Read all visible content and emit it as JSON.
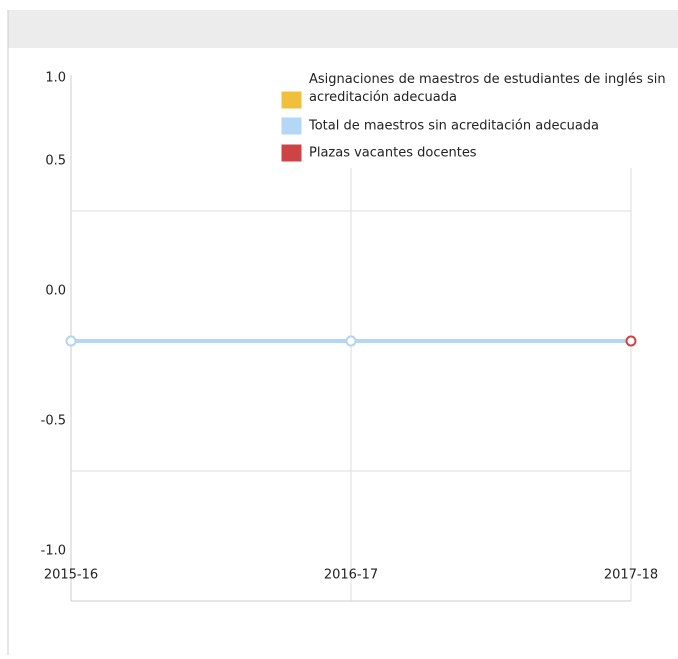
{
  "chart_data": {
    "type": "line",
    "categories": [
      "2015-16",
      "2016-17",
      "2017-18"
    ],
    "series": [
      {
        "name": "Asignaciones de maestros de estudiantes de inglés sin acreditación adecuada",
        "color": "#f0c03c",
        "values": [
          0,
          0,
          0
        ]
      },
      {
        "name": "Total de maestros sin acreditación adecuada",
        "color": "#b3d7f5",
        "values": [
          0,
          0,
          0
        ]
      },
      {
        "name": "Plazas vacantes docentes",
        "color": "#cc4444",
        "values": [
          null,
          null,
          0
        ]
      }
    ],
    "ylim": [
      -1,
      1
    ],
    "yticks": [
      {
        "value": 1,
        "label": "1.0"
      },
      {
        "value": 0.5,
        "label": "0.5"
      },
      {
        "value": 0,
        "label": "0.0"
      },
      {
        "value": -0.5,
        "label": "-0.5"
      },
      {
        "value": -1,
        "label": "-1.0"
      }
    ],
    "grid": true
  }
}
